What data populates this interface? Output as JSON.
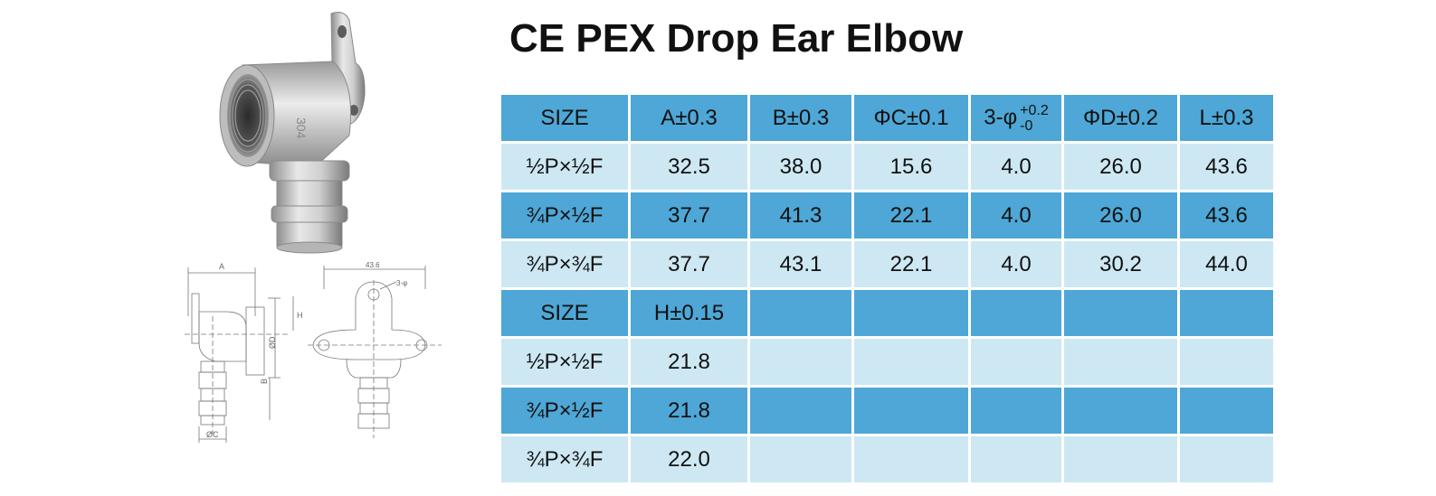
{
  "title": "CE PEX Drop Ear Elbow",
  "product": {
    "stamp_text": "304"
  },
  "drawings": {
    "label_A": "A",
    "label_B": "B",
    "label_C": "ØC",
    "label_D": "ØD",
    "label_H": "H",
    "label_L": "43.6",
    "label_phi": "3-φ"
  },
  "table1": {
    "headers": {
      "size": "SIZE",
      "a": "A±0.3",
      "b": "B±0.3",
      "c": "ΦC±0.1",
      "phi": "3-φ",
      "phi_upper": "+0.2",
      "phi_lower": "-0",
      "d": "ΦD±0.2",
      "l": "L±0.3"
    },
    "rows": [
      {
        "size": "½P×½F",
        "a": "32.5",
        "b": "38.0",
        "c": "15.6",
        "phi": "4.0",
        "d": "26.0",
        "l": "43.6"
      },
      {
        "size": "¾P×½F",
        "a": "37.7",
        "b": "41.3",
        "c": "22.1",
        "phi": "4.0",
        "d": "26.0",
        "l": "43.6"
      },
      {
        "size": "¾P×¾F",
        "a": "37.7",
        "b": "43.1",
        "c": "22.1",
        "phi": "4.0",
        "d": "30.2",
        "l": "44.0"
      }
    ]
  },
  "table2": {
    "headers": {
      "size": "SIZE",
      "h": "H±0.15"
    },
    "rows": [
      {
        "size": "½P×½F",
        "h": "21.8"
      },
      {
        "size": "¾P×½F",
        "h": "21.8"
      },
      {
        "size": "¾P×¾F",
        "h": "22.0"
      }
    ]
  },
  "colors": {
    "header_blue": "#4ea7d6",
    "light_blue": "#cde8f3"
  }
}
